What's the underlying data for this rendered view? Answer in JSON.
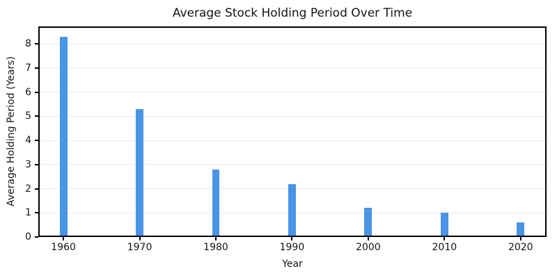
{
  "chart_data": {
    "type": "bar",
    "title": "Average Stock Holding Period Over Time",
    "xlabel": "Year",
    "ylabel": "Average Holding Period (Years)",
    "categories": [
      "1960",
      "1970",
      "1980",
      "1990",
      "2000",
      "2010",
      "2020"
    ],
    "values": [
      8.3,
      5.3,
      2.8,
      2.2,
      1.2,
      1.0,
      0.6
    ],
    "yticks": [
      0,
      1,
      2,
      3,
      4,
      5,
      6,
      7,
      8
    ],
    "ylim": [
      0,
      8.72
    ],
    "xlim": [
      -0.33,
      6.34
    ],
    "bar_width_units": 0.1,
    "bar_color": "#4a94e6",
    "grid": true,
    "grid_color": "#e9e9e9",
    "legend": "none"
  }
}
